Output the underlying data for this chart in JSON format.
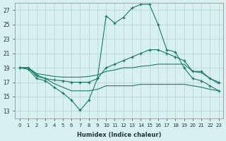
{
  "xlabel": "Humidex (Indice chaleur)",
  "x": [
    0,
    1,
    2,
    3,
    4,
    5,
    6,
    7,
    8,
    9,
    10,
    11,
    12,
    13,
    14,
    15,
    16,
    17,
    18,
    19,
    20,
    21,
    22,
    23
  ],
  "line1": [
    19.0,
    18.8,
    17.5,
    17.2,
    16.3,
    15.5,
    14.5,
    13.1,
    14.5,
    17.5,
    26.2,
    25.2,
    26.0,
    27.3,
    27.8,
    27.8,
    25.0,
    21.5,
    21.2,
    19.0,
    17.5,
    17.2,
    16.5,
    15.8
  ],
  "line2": [
    19.0,
    19.0,
    18.0,
    17.5,
    17.3,
    17.2,
    17.0,
    17.0,
    17.0,
    17.5,
    19.0,
    19.5,
    20.0,
    20.5,
    21.0,
    21.5,
    21.5,
    21.0,
    20.5,
    20.0,
    18.5,
    18.5,
    17.5,
    17.0
  ],
  "line3": [
    19.0,
    19.0,
    18.2,
    18.0,
    17.8,
    17.7,
    17.7,
    17.7,
    17.8,
    18.0,
    18.5,
    18.7,
    19.0,
    19.0,
    19.2,
    19.3,
    19.5,
    19.5,
    19.5,
    19.5,
    18.5,
    18.3,
    17.5,
    16.8
  ],
  "line4": [
    19.0,
    19.0,
    17.8,
    17.5,
    16.8,
    16.3,
    15.8,
    15.8,
    15.8,
    16.0,
    16.5,
    16.5,
    16.5,
    16.5,
    16.7,
    16.7,
    16.7,
    16.7,
    16.7,
    16.7,
    16.5,
    16.3,
    16.0,
    15.8
  ],
  "line_color": "#1a7a6a",
  "bg_color": "#d8f0f0",
  "grid_color": "#b8dada",
  "ylim": [
    12,
    28
  ],
  "xlim": [
    -0.5,
    23.5
  ],
  "yticks": [
    13,
    15,
    17,
    19,
    21,
    23,
    25,
    27
  ],
  "xticks": [
    0,
    1,
    2,
    3,
    4,
    5,
    6,
    7,
    8,
    9,
    10,
    11,
    12,
    13,
    14,
    15,
    16,
    17,
    18,
    19,
    20,
    21,
    22,
    23
  ]
}
